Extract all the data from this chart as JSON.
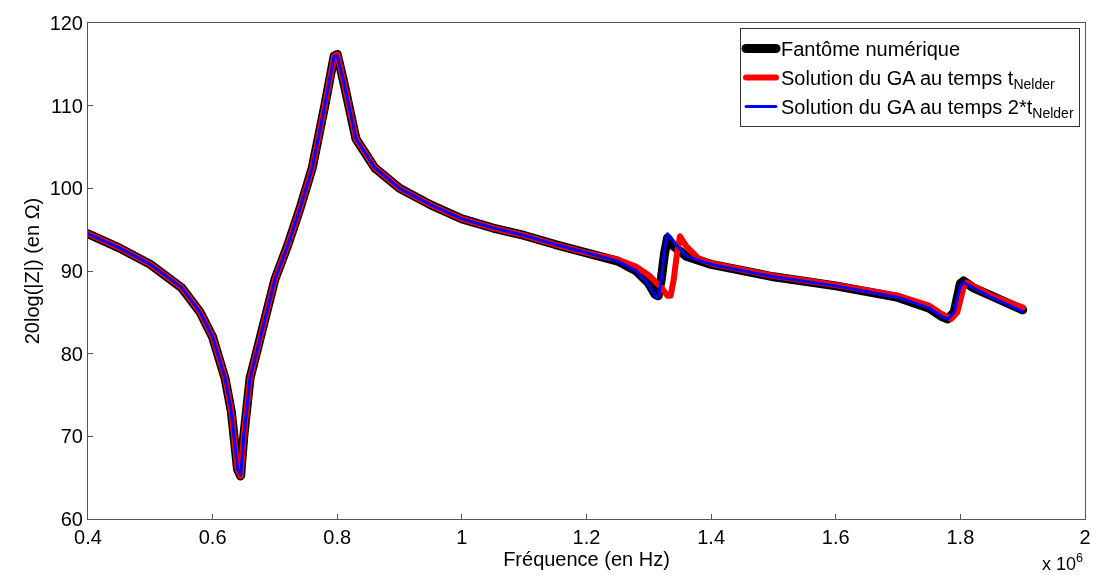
{
  "chart_data": {
    "type": "line",
    "xlabel": "Fréquence (en Hz)",
    "ylabel": "20log(|Z|) (en Ω)",
    "xlim": [
      0.4,
      2
    ],
    "xticks": [
      0.4,
      0.6,
      0.8,
      1,
      1.2,
      1.4,
      1.6,
      1.8,
      2
    ],
    "ylim": [
      60,
      120
    ],
    "yticks": [
      60,
      70,
      80,
      90,
      100,
      110,
      120
    ],
    "legend": "top right",
    "marker": "none",
    "line_style": "solid",
    "annotations": [
      "x 10$^{6}$"
    ],
    "series": [
      {
        "name": "Fantôme numérique",
        "color": "#000000",
        "x": [
          0.4,
          0.45,
          0.5,
          0.55,
          0.58,
          0.6,
          0.62,
          0.63,
          0.64,
          0.645,
          0.65,
          0.66,
          0.68,
          0.7,
          0.72,
          0.74,
          0.76,
          0.78,
          0.795,
          0.8,
          0.81,
          0.83,
          0.86,
          0.9,
          0.95,
          1.0,
          1.05,
          1.1,
          1.15,
          1.2,
          1.25,
          1.28,
          1.3,
          1.31,
          1.315,
          1.32,
          1.325,
          1.33,
          1.34,
          1.36,
          1.4,
          1.5,
          1.6,
          1.7,
          1.75,
          1.77,
          1.78,
          1.79,
          1.8,
          1.805,
          1.82,
          1.85,
          1.9
        ],
        "values": [
          94.5,
          92.8,
          90.8,
          88,
          85,
          82,
          77,
          73,
          66,
          65.2,
          70,
          77,
          83,
          89,
          93,
          97.5,
          102.5,
          110,
          116,
          116.2,
          113,
          106,
          102.5,
          100,
          98,
          96.3,
          95.2,
          94.3,
          93.2,
          92.2,
          91.2,
          90,
          88.5,
          87.2,
          87,
          89,
          92,
          94,
          93,
          91.8,
          90.8,
          89.3,
          88.2,
          86.8,
          85.5,
          84.5,
          84.2,
          85,
          88.5,
          88.8,
          88,
          87,
          85.3
        ]
      },
      {
        "name": "Solution du GA au temps t$_{Nelder}$",
        "color": "#ff0000",
        "x": [
          0.4,
          0.45,
          0.5,
          0.55,
          0.58,
          0.6,
          0.62,
          0.63,
          0.64,
          0.645,
          0.65,
          0.66,
          0.68,
          0.7,
          0.72,
          0.74,
          0.76,
          0.78,
          0.795,
          0.8,
          0.81,
          0.83,
          0.86,
          0.9,
          0.95,
          1.0,
          1.05,
          1.1,
          1.15,
          1.2,
          1.25,
          1.28,
          1.3,
          1.32,
          1.33,
          1.335,
          1.34,
          1.345,
          1.35,
          1.36,
          1.38,
          1.4,
          1.5,
          1.6,
          1.7,
          1.75,
          1.77,
          1.785,
          1.795,
          1.805,
          1.81,
          1.83,
          1.85,
          1.9
        ],
        "values": [
          94.5,
          92.8,
          90.8,
          88,
          85,
          82,
          77,
          73,
          66,
          65.2,
          70,
          77,
          83,
          89,
          93,
          97.5,
          102.5,
          110,
          116,
          116.2,
          113,
          106,
          102.5,
          100,
          98,
          96.3,
          95.2,
          94.3,
          93.2,
          92.2,
          91.4,
          90.5,
          89.5,
          88,
          87,
          87,
          89,
          92,
          94.2,
          93,
          91.5,
          90.9,
          89.4,
          88.3,
          87,
          85.8,
          84.8,
          84.2,
          85,
          88,
          88.6,
          87.8,
          87,
          85.6
        ]
      },
      {
        "name": "Solution du GA au temps 2*t$_{Nelder}$",
        "color": "#0000ff",
        "x": [
          0.4,
          0.45,
          0.5,
          0.55,
          0.58,
          0.6,
          0.62,
          0.63,
          0.64,
          0.645,
          0.65,
          0.66,
          0.68,
          0.7,
          0.72,
          0.74,
          0.76,
          0.78,
          0.795,
          0.8,
          0.81,
          0.83,
          0.86,
          0.9,
          0.95,
          1.0,
          1.05,
          1.1,
          1.15,
          1.2,
          1.25,
          1.28,
          1.3,
          1.31,
          1.315,
          1.32,
          1.325,
          1.33,
          1.34,
          1.36,
          1.4,
          1.5,
          1.6,
          1.7,
          1.75,
          1.77,
          1.78,
          1.79,
          1.8,
          1.805,
          1.82,
          1.85,
          1.9
        ],
        "values": [
          94.5,
          92.8,
          90.8,
          88,
          85,
          82,
          77,
          73,
          66,
          65.3,
          70,
          77,
          83,
          89,
          93,
          97.5,
          102.5,
          110,
          116,
          116,
          113,
          106,
          102.5,
          100,
          98,
          96.3,
          95.2,
          94.3,
          93.2,
          92.2,
          91.2,
          90,
          88.3,
          87,
          86.8,
          89,
          92.5,
          94.5,
          93.5,
          91.8,
          90.8,
          89.3,
          88.2,
          86.8,
          85.5,
          84.5,
          84.2,
          85,
          88.3,
          88.6,
          88,
          86.8,
          85.1
        ]
      }
    ]
  }
}
